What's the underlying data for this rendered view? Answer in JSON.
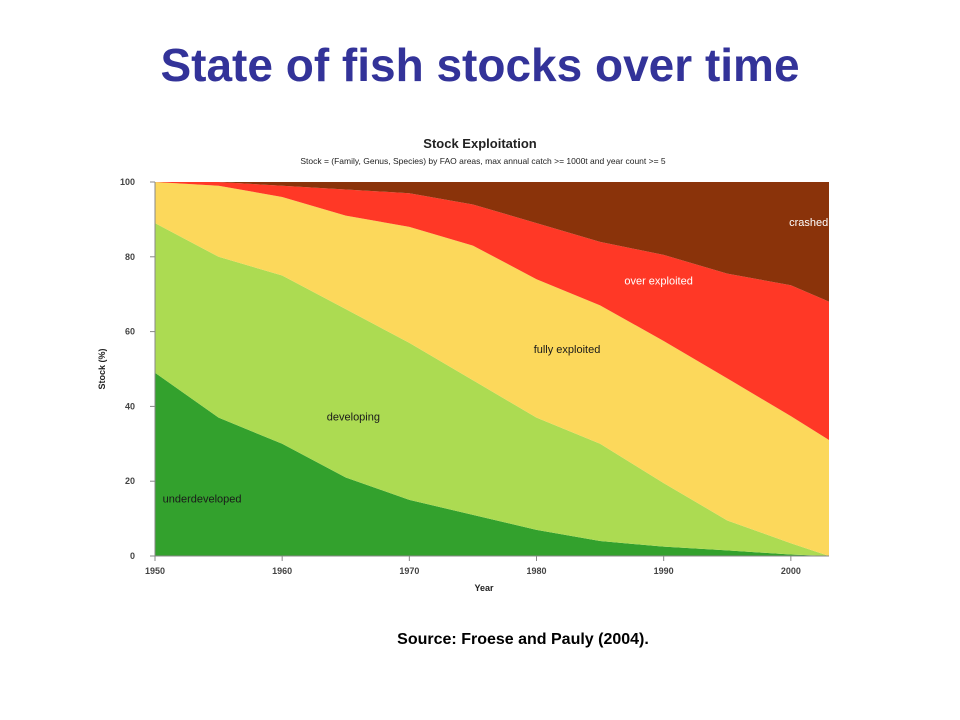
{
  "slide": {
    "title": "State of fish stocks over time",
    "source": "Source: Froese and Pauly (2004)."
  },
  "colors": {
    "underdeveloped": "#33a12d",
    "developing": "#acdb52",
    "fully_exploited": "#fcd85b",
    "over_exploited": "#ff3826",
    "crashed": "#8a330a",
    "title_color": "#333399"
  },
  "chart_data": {
    "type": "area",
    "stacked": true,
    "title": "Stock Exploitation",
    "subtitle": "Stock = (Family, Genus, Species) by FAO areas, max annual catch >= 1000t and year count >= 5",
    "xlabel": "Year",
    "ylabel": "Stock (%)",
    "xlim": [
      1950,
      2003
    ],
    "ylim": [
      0,
      100
    ],
    "xticks": [
      1950,
      1960,
      1970,
      1980,
      1990,
      2000
    ],
    "yticks": [
      0,
      20,
      40,
      60,
      80,
      100
    ],
    "grid": false,
    "x": [
      1950,
      1955,
      1960,
      1965,
      1970,
      1975,
      1980,
      1985,
      1990,
      1995,
      2000,
      2003
    ],
    "series": [
      {
        "name": "underdeveloped",
        "values": [
          49,
          37,
          30,
          21,
          15,
          11,
          7,
          4,
          2.5,
          1.5,
          0.4,
          0
        ]
      },
      {
        "name": "developing",
        "values": [
          40,
          43,
          45,
          45,
          42,
          36,
          30,
          26,
          17,
          8,
          3,
          0
        ]
      },
      {
        "name": "fully exploited",
        "values": [
          11,
          19,
          21,
          25,
          31,
          36,
          37,
          37,
          38,
          38,
          34,
          31
        ]
      },
      {
        "name": "over exploited",
        "values": [
          0,
          1,
          3,
          7,
          9,
          11,
          15,
          17,
          23,
          28,
          35,
          37
        ]
      },
      {
        "name": "crashed",
        "values": [
          0,
          0,
          1,
          2,
          3,
          6,
          11,
          16,
          19.5,
          24.5,
          27.6,
          32
        ]
      }
    ],
    "annotations": [
      {
        "text": "underdeveloped",
        "x": 1953.7,
        "y": 15.4
      },
      {
        "text": "developing",
        "x": 1965.6,
        "y": 37.3
      },
      {
        "text": "fully exploited",
        "x": 1982.4,
        "y": 55.4
      },
      {
        "text": "over exploited",
        "x": 1989.6,
        "y": 73.6
      },
      {
        "text": "crashed",
        "x": 2001.4,
        "y": 89.3
      }
    ]
  }
}
